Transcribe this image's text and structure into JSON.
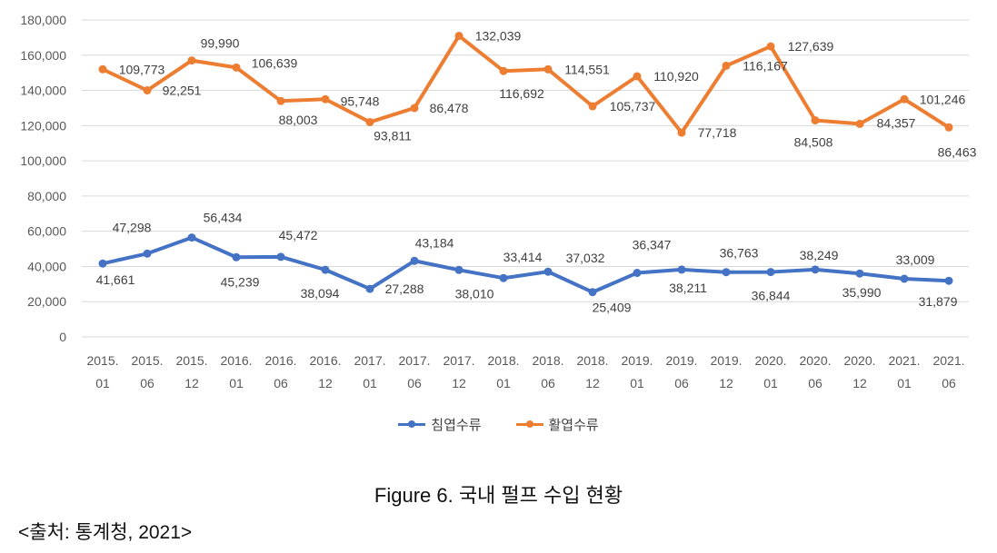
{
  "chart_data": {
    "type": "line",
    "title": "",
    "xlabel": "",
    "ylabel": "",
    "ylim": [
      0,
      180000
    ],
    "yticks": [
      "0",
      "20,000",
      "40,000",
      "60,000",
      "80,000",
      "100,000",
      "120,000",
      "140,000",
      "160,000",
      "180,000"
    ],
    "grid": true,
    "legend_position": "bottom",
    "categories": [
      [
        "2015.",
        "01"
      ],
      [
        "2015.",
        "06"
      ],
      [
        "2015.",
        "12"
      ],
      [
        "2016.",
        "01"
      ],
      [
        "2016.",
        "06"
      ],
      [
        "2016.",
        "12"
      ],
      [
        "2017.",
        "01"
      ],
      [
        "2017.",
        "06"
      ],
      [
        "2017.",
        "12"
      ],
      [
        "2018.",
        "01"
      ],
      [
        "2018.",
        "06"
      ],
      [
        "2018.",
        "12"
      ],
      [
        "2019.",
        "01"
      ],
      [
        "2019.",
        "06"
      ],
      [
        "2019.",
        "12"
      ],
      [
        "2020.",
        "01"
      ],
      [
        "2020.",
        "06"
      ],
      [
        "2020.",
        "12"
      ],
      [
        "2021.",
        "01"
      ],
      [
        "2021.",
        "06"
      ]
    ],
    "series": [
      {
        "name": "침엽수류",
        "color": "#4472C4",
        "values": [
          41661,
          47298,
          56434,
          45239,
          45472,
          38094,
          27288,
          43184,
          38010,
          33414,
          37032,
          25409,
          36347,
          38211,
          36763,
          36844,
          38249,
          35990,
          33009,
          31879
        ],
        "data_labels": [
          "41,661",
          "47,298",
          "56,434",
          "45,239",
          "45,472",
          "38,094",
          "27,288",
          "43,184",
          "38,010",
          "33,414",
          "37,032",
          "25,409",
          "36,347",
          "38,211",
          "36,763",
          "36,844",
          "38,249",
          "35,990",
          "33,009",
          "31,879"
        ]
      },
      {
        "name": "활엽수류",
        "color": "#ED7D31",
        "values": [
          152000,
          140000,
          157000,
          153000,
          134000,
          135000,
          122000,
          130000,
          171000,
          151000,
          152000,
          131000,
          148000,
          116000,
          154000,
          165000,
          123000,
          121000,
          135000,
          119000
        ],
        "data_labels": [
          "109,773",
          "92,251",
          "99,990",
          "106,639",
          "88,003",
          "95,748",
          "93,811",
          "86,478",
          "132,039",
          "116,692",
          "114,551",
          "105,737",
          "110,920",
          "77,718",
          "116,167",
          "127,639",
          "84,508",
          "84,357",
          "101,246",
          "86,463"
        ]
      }
    ]
  },
  "caption": "Figure 6. 국내 펄프 수입 현황",
  "source": "<출처: 통계청, 2021>"
}
